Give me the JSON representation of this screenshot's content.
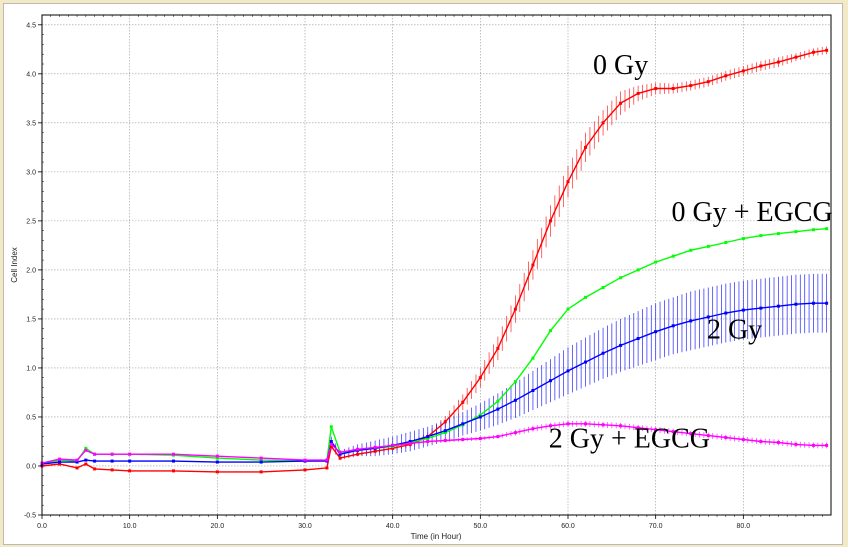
{
  "chart_data": {
    "type": "line",
    "title": "",
    "xlabel": "Time (in Hour)",
    "ylabel": "Cell Index",
    "xlim": [
      0,
      90
    ],
    "ylim": [
      -0.5,
      4.6
    ],
    "x_ticks": [
      "0.0",
      "10.0",
      "20.0",
      "30.0",
      "40.0",
      "50.0",
      "60.0",
      "70.0",
      "80.0"
    ],
    "y_ticks": [
      "-0.5",
      "0.0",
      "0.5",
      "1.0",
      "1.5",
      "2.0",
      "2.5",
      "3.0",
      "3.5",
      "4.0",
      "4.5"
    ],
    "grid": true,
    "error_bars": true,
    "series": [
      {
        "name": "0 Gy",
        "color": "#ff0000",
        "label_at": [
          66,
          4.0
        ],
        "x": [
          0,
          2,
          4,
          5,
          6,
          8,
          10,
          15,
          20,
          25,
          30,
          32.5,
          33,
          34,
          36,
          38,
          40,
          42,
          44,
          46,
          48,
          50,
          52,
          54,
          56,
          58,
          60,
          62,
          64,
          66,
          68,
          70,
          72,
          74,
          76,
          78,
          80,
          82,
          84,
          86,
          88,
          89.5
        ],
        "y": [
          0.0,
          0.02,
          -0.02,
          0.02,
          -0.03,
          -0.04,
          -0.05,
          -0.05,
          -0.06,
          -0.06,
          -0.04,
          -0.02,
          0.2,
          0.08,
          0.12,
          0.15,
          0.18,
          0.22,
          0.3,
          0.45,
          0.65,
          0.9,
          1.2,
          1.6,
          2.05,
          2.5,
          2.9,
          3.25,
          3.5,
          3.7,
          3.8,
          3.85,
          3.85,
          3.88,
          3.92,
          3.98,
          4.03,
          4.08,
          4.12,
          4.17,
          4.22,
          4.24
        ],
        "err": [
          0.01,
          0.01,
          0.01,
          0.01,
          0.01,
          0.01,
          0.01,
          0.01,
          0.01,
          0.01,
          0.01,
          0.01,
          0.03,
          0.02,
          0.02,
          0.02,
          0.02,
          0.03,
          0.04,
          0.06,
          0.08,
          0.1,
          0.12,
          0.14,
          0.15,
          0.16,
          0.16,
          0.15,
          0.13,
          0.12,
          0.08,
          0.06,
          0.05,
          0.05,
          0.05,
          0.05,
          0.05,
          0.05,
          0.05,
          0.04,
          0.04,
          0.04
        ]
      },
      {
        "name": "0 Gy + EGCG",
        "color": "#00ff00",
        "label_at": [
          81,
          2.5
        ],
        "x": [
          0,
          2,
          4,
          5,
          6,
          8,
          10,
          15,
          20,
          25,
          30,
          32.5,
          33,
          34,
          36,
          38,
          40,
          42,
          44,
          46,
          48,
          50,
          52,
          54,
          56,
          58,
          60,
          62,
          64,
          66,
          68,
          70,
          72,
          74,
          76,
          78,
          80,
          82,
          84,
          86,
          88,
          89.5
        ],
        "y": [
          0.02,
          0.06,
          0.05,
          0.18,
          0.12,
          0.12,
          0.12,
          0.11,
          0.08,
          0.06,
          0.05,
          0.06,
          0.4,
          0.14,
          0.16,
          0.18,
          0.2,
          0.24,
          0.28,
          0.34,
          0.42,
          0.52,
          0.66,
          0.86,
          1.1,
          1.38,
          1.6,
          1.72,
          1.82,
          1.92,
          2.0,
          2.08,
          2.14,
          2.2,
          2.24,
          2.28,
          2.32,
          2.35,
          2.37,
          2.39,
          2.41,
          2.42
        ]
      },
      {
        "name": "2 Gy",
        "color": "#0000ff",
        "label_at": [
          79,
          1.3
        ],
        "x": [
          0,
          2,
          4,
          5,
          6,
          8,
          10,
          15,
          20,
          25,
          30,
          32.5,
          33,
          34,
          36,
          38,
          40,
          42,
          44,
          46,
          48,
          50,
          52,
          54,
          56,
          58,
          60,
          62,
          64,
          66,
          68,
          70,
          72,
          74,
          76,
          78,
          80,
          82,
          84,
          86,
          88,
          89.5
        ],
        "y": [
          0.02,
          0.04,
          0.04,
          0.06,
          0.05,
          0.05,
          0.05,
          0.05,
          0.04,
          0.04,
          0.05,
          0.05,
          0.25,
          0.12,
          0.16,
          0.18,
          0.21,
          0.25,
          0.3,
          0.36,
          0.43,
          0.5,
          0.58,
          0.67,
          0.77,
          0.87,
          0.97,
          1.06,
          1.15,
          1.23,
          1.3,
          1.37,
          1.43,
          1.48,
          1.52,
          1.56,
          1.59,
          1.61,
          1.63,
          1.65,
          1.66,
          1.66
        ],
        "err": [
          0.01,
          0.01,
          0.01,
          0.01,
          0.01,
          0.01,
          0.01,
          0.01,
          0.01,
          0.01,
          0.01,
          0.01,
          0.05,
          0.04,
          0.06,
          0.08,
          0.09,
          0.1,
          0.1,
          0.11,
          0.12,
          0.14,
          0.16,
          0.18,
          0.2,
          0.22,
          0.24,
          0.25,
          0.26,
          0.27,
          0.28,
          0.29,
          0.29,
          0.3,
          0.3,
          0.3,
          0.3,
          0.3,
          0.3,
          0.3,
          0.3,
          0.3
        ]
      },
      {
        "name": "2 Gy + EGCG",
        "color": "#ff00ff",
        "label_at": [
          67,
          0.19
        ],
        "x": [
          0,
          2,
          4,
          5,
          6,
          8,
          10,
          15,
          20,
          25,
          30,
          32.5,
          33,
          34,
          36,
          38,
          40,
          42,
          44,
          46,
          48,
          50,
          52,
          54,
          56,
          58,
          60,
          62,
          64,
          66,
          68,
          70,
          72,
          74,
          76,
          78,
          80,
          82,
          84,
          86,
          88,
          89.5
        ],
        "y": [
          0.03,
          0.07,
          0.06,
          0.16,
          0.12,
          0.12,
          0.12,
          0.12,
          0.1,
          0.08,
          0.06,
          0.06,
          0.22,
          0.14,
          0.17,
          0.19,
          0.21,
          0.23,
          0.25,
          0.26,
          0.27,
          0.28,
          0.3,
          0.34,
          0.38,
          0.41,
          0.43,
          0.43,
          0.42,
          0.41,
          0.39,
          0.37,
          0.35,
          0.33,
          0.31,
          0.29,
          0.27,
          0.25,
          0.24,
          0.22,
          0.21,
          0.21
        ],
        "err": [
          0.01,
          0.01,
          0.01,
          0.01,
          0.01,
          0.01,
          0.01,
          0.01,
          0.01,
          0.01,
          0.01,
          0.01,
          0.02,
          0.02,
          0.02,
          0.02,
          0.02,
          0.02,
          0.02,
          0.02,
          0.02,
          0.02,
          0.02,
          0.03,
          0.03,
          0.03,
          0.03,
          0.03,
          0.03,
          0.03,
          0.03,
          0.03,
          0.03,
          0.03,
          0.03,
          0.03,
          0.03,
          0.03,
          0.03,
          0.03,
          0.03,
          0.03
        ]
      }
    ]
  }
}
